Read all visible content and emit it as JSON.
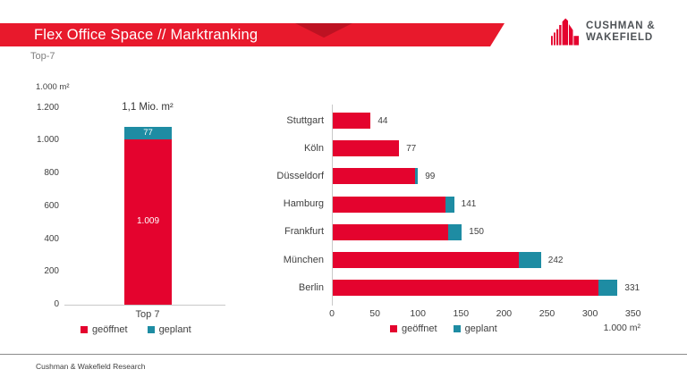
{
  "header": {
    "title": "Flex Office Space // Marktranking",
    "subtitle": "Top-7",
    "logo": {
      "line1": "CUSHMAN &",
      "line2": "WAKEFIELD"
    }
  },
  "footer": {
    "text": "Cushman & Wakefield Research"
  },
  "colors": {
    "banner_red": "#e8192c",
    "bar_red": "#e4032e",
    "bar_teal": "#1e8ca3",
    "axis_text": "#404040",
    "muted_text": "#7f7f7f",
    "logo_gray": "#4e5256",
    "axis_line": "#c9c9c9"
  },
  "chart_data": [
    {
      "type": "bar",
      "orientation": "vertical",
      "stacked": true,
      "annotation": "1,1 Mio. m²",
      "axis_unit": "1.000 m²",
      "categories": [
        "Top 7"
      ],
      "series": [
        {
          "name": "geöffnet",
          "color": "#e4032e",
          "values": [
            1009
          ],
          "data_labels": [
            "1.009"
          ]
        },
        {
          "name": "geplant",
          "color": "#1e8ca3",
          "values": [
            77
          ],
          "data_labels": [
            "77"
          ]
        }
      ],
      "ylim": [
        0,
        1200
      ],
      "yticks": [
        {
          "v": 1200,
          "label": "1.200"
        },
        {
          "v": 1000,
          "label": "1.000"
        },
        {
          "v": 800,
          "label": "800"
        },
        {
          "v": 600,
          "label": "600"
        },
        {
          "v": 400,
          "label": "400"
        },
        {
          "v": 200,
          "label": "200"
        },
        {
          "v": 0,
          "label": "0"
        }
      ],
      "legend": [
        "geöffnet",
        "geplant"
      ],
      "legend_position": "bottom",
      "grid": false
    },
    {
      "type": "bar",
      "orientation": "horizontal",
      "stacked": true,
      "categories": [
        "Stuttgart",
        "Köln",
        "Düsseldorf",
        "Hamburg",
        "Frankfurt",
        "München",
        "Berlin"
      ],
      "series": [
        {
          "name": "geöffnet",
          "color": "#e4032e",
          "values": [
            44,
            77,
            96,
            131,
            134,
            216,
            309
          ]
        },
        {
          "name": "geplant",
          "color": "#1e8ca3",
          "values": [
            0,
            0,
            3,
            10,
            16,
            26,
            22
          ]
        }
      ],
      "totals": [
        44,
        77,
        99,
        141,
        150,
        242,
        331
      ],
      "xlim": [
        0,
        350
      ],
      "xticks": [
        0,
        50,
        100,
        150,
        200,
        250,
        300,
        350
      ],
      "xlabel": "1.000 m²",
      "legend": [
        "geöffnet",
        "geplant"
      ],
      "legend_position": "bottom",
      "grid": false
    }
  ]
}
